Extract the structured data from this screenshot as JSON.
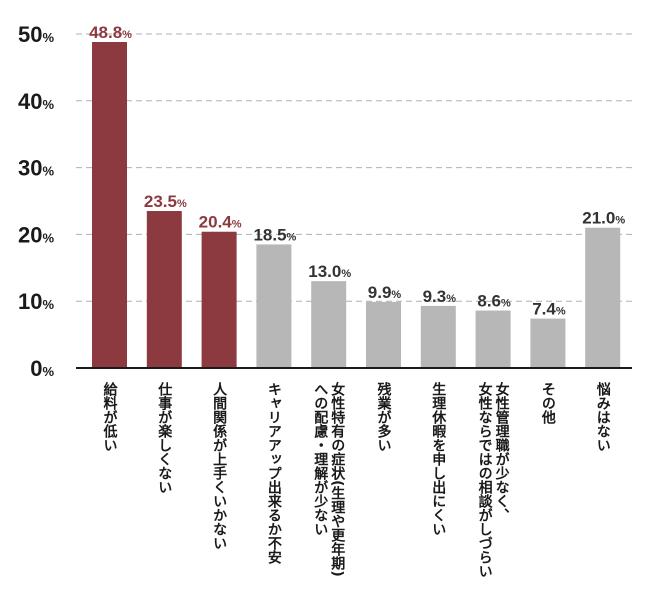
{
  "chart_data": {
    "type": "bar",
    "title": "",
    "xlabel": "",
    "ylabel": "",
    "ylim": [
      0,
      50
    ],
    "yticks": [
      0,
      10,
      20,
      30,
      40,
      50
    ],
    "ytick_suffix": "%",
    "grid": true,
    "highlight_color": "#8c3a40",
    "base_color": "#b7b7b7",
    "categories": [
      "給料が低い",
      "仕事が楽しくない",
      "人間関係が上手くいかない",
      "キャリアアップ出来るか不安",
      "女性特有の症状(生理や更年期)への配慮・理解が少ない",
      "残業が多い",
      "生理休暇を申し出にくい",
      "女性管理職が少なく、女性ならではの相談がしづらい",
      "その他",
      "悩みはない"
    ],
    "category_lines": [
      [
        "給料が低い"
      ],
      [
        "仕事が楽しくない"
      ],
      [
        "人間関係が上手くいかない"
      ],
      [
        "キャリアアップ出来るか不安"
      ],
      [
        "女性特有の症状(生理や更年期)",
        "への配慮・理解が少ない"
      ],
      [
        "残業が多い"
      ],
      [
        "生理休暇を申し出にくい"
      ],
      [
        "女性管理職が少なく、",
        "女性ならではの相談がしづらい"
      ],
      [
        "その他"
      ],
      [
        "悩みはない"
      ]
    ],
    "values": [
      48.8,
      23.5,
      20.4,
      18.5,
      13.0,
      9.9,
      9.3,
      8.6,
      7.4,
      21.0
    ],
    "value_labels": [
      "48.8",
      "23.5",
      "20.4",
      "18.5",
      "13.0",
      "9.9",
      "9.3",
      "8.6",
      "7.4",
      "21.0"
    ],
    "highlighted": [
      true,
      true,
      true,
      false,
      false,
      false,
      false,
      false,
      false,
      false
    ]
  }
}
